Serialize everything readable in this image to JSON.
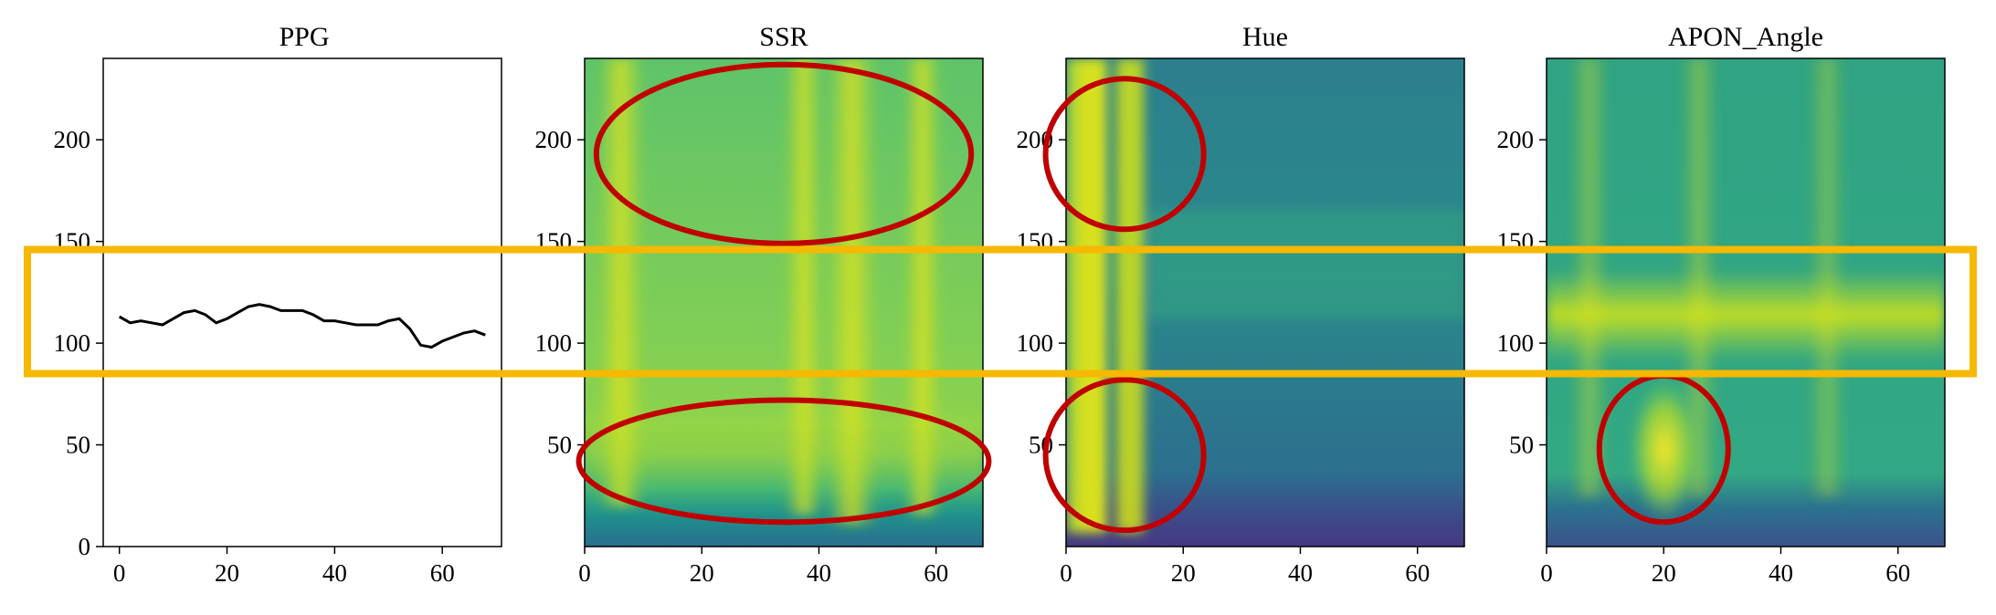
{
  "chart_data": [
    {
      "type": "line",
      "title": "PPG",
      "xlabel": "",
      "ylabel": "",
      "xlim": [
        -3,
        71
      ],
      "ylim": [
        0,
        240
      ],
      "xticks": [
        0,
        20,
        40,
        60
      ],
      "yticks": [
        0,
        50,
        100,
        150,
        200
      ],
      "series": [
        {
          "color": "#000000",
          "x": [
            0,
            2,
            4,
            6,
            8,
            10,
            12,
            14,
            16,
            18,
            20,
            22,
            24,
            26,
            28,
            30,
            32,
            34,
            36,
            38,
            40,
            42,
            44,
            46,
            48,
            50,
            52,
            54,
            56,
            58,
            60,
            62,
            64,
            66,
            68
          ],
          "y": [
            113,
            110,
            111,
            110,
            109,
            112,
            115,
            116,
            114,
            110,
            112,
            115,
            118,
            119,
            118,
            116,
            116,
            116,
            114,
            111,
            111,
            110,
            109,
            109,
            109,
            111,
            112,
            107,
            99,
            98,
            101,
            103,
            105,
            106,
            104
          ]
        }
      ]
    },
    {
      "type": "heatmap",
      "title": "SSR",
      "xlabel": "",
      "ylabel": "",
      "xlim": [
        0,
        68
      ],
      "ylim": [
        0,
        240
      ],
      "xticks": [
        0,
        20,
        40,
        60
      ],
      "yticks": [
        50,
        100,
        150,
        200
      ],
      "colormap": "viridis",
      "bright_columns_x": [
        5,
        38,
        57
      ],
      "dark_band_y": [
        0,
        20
      ],
      "annotations": [
        {
          "shape": "ellipse",
          "color": "#c00000",
          "cx": 34,
          "cy": 193,
          "rx": 32,
          "ry": 44
        },
        {
          "shape": "ellipse",
          "color": "#c00000",
          "cx": 34,
          "cy": 42,
          "rx": 35,
          "ry": 30
        }
      ]
    },
    {
      "type": "heatmap",
      "title": "Hue",
      "xlabel": "",
      "ylabel": "",
      "xlim": [
        0,
        68
      ],
      "ylim": [
        0,
        240
      ],
      "xticks": [
        0,
        20,
        40,
        60
      ],
      "yticks": [
        50,
        100,
        150,
        200
      ],
      "colormap": "viridis",
      "bright_columns_x": [
        5,
        11
      ],
      "dark_band_y": [
        0,
        20
      ],
      "annotations": [
        {
          "shape": "ellipse",
          "color": "#c00000",
          "cx": 10,
          "cy": 193,
          "rx": 13.5,
          "ry": 37
        },
        {
          "shape": "ellipse",
          "color": "#c00000",
          "cx": 10,
          "cy": 45,
          "rx": 13.5,
          "ry": 37
        }
      ]
    },
    {
      "type": "heatmap",
      "title": "APON_Angle",
      "xlabel": "",
      "ylabel": "",
      "xlim": [
        0,
        68
      ],
      "ylim": [
        0,
        240
      ],
      "xticks": [
        0,
        20,
        40,
        60
      ],
      "yticks": [
        50,
        100,
        150,
        200
      ],
      "colormap": "viridis",
      "bright_band_y": [
        100,
        125
      ],
      "bright_spot": {
        "x": 20,
        "y": 50
      },
      "dark_band_y": [
        0,
        20
      ],
      "annotations": [
        {
          "shape": "ellipse",
          "color": "#c00000",
          "cx": 20,
          "cy": 48,
          "rx": 11,
          "ry": 36
        }
      ]
    }
  ],
  "highlight": {
    "shape": "rectangle",
    "color": "#f6b800",
    "y_range": [
      85,
      146
    ]
  }
}
